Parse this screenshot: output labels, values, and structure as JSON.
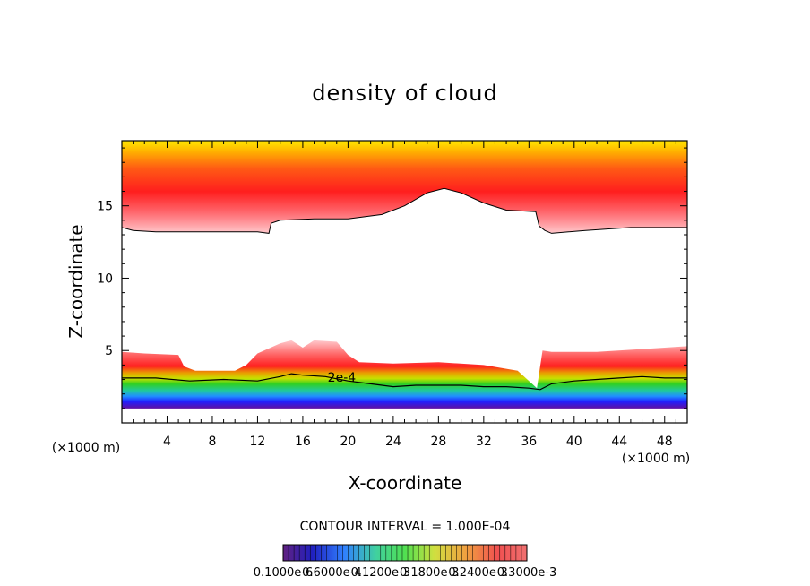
{
  "chart_data": {
    "type": "contour",
    "title": "density of cloud",
    "xlabel": "X-coordinate",
    "ylabel": "Z-coordinate",
    "x_unit": "(×1000 m)",
    "y_unit": "(×1000 m)",
    "xlim": [
      0,
      50
    ],
    "ylim": [
      0,
      19.5
    ],
    "x_ticks": [
      4,
      8,
      12,
      16,
      20,
      24,
      28,
      32,
      36,
      40,
      44,
      48
    ],
    "y_ticks": [
      5,
      10,
      15
    ],
    "contour_interval_text": "CONTOUR INTERVAL = 1.000E-04",
    "contour_label": "2e-4",
    "colorbar_labels": [
      "0.1000e-6",
      "0.6000e-4",
      "0.1200e-3",
      "0.1800e-3",
      "0.2400e-3",
      "0.3000e-3"
    ],
    "upper_cloud": {
      "top": 19.5,
      "base_x": [
        0,
        1,
        3,
        6,
        9,
        12,
        13,
        13.2,
        14,
        17,
        20,
        23,
        25,
        27,
        28.5,
        30,
        32,
        34,
        36.6,
        36.9,
        37.4,
        38,
        41,
        45,
        50
      ],
      "base_z": [
        13.5,
        13.3,
        13.2,
        13.2,
        13.2,
        13.2,
        13.1,
        13.8,
        14.0,
        14.1,
        14.1,
        14.4,
        15.0,
        15.9,
        16.2,
        15.9,
        15.2,
        14.7,
        14.6,
        13.6,
        13.3,
        13.1,
        13.3,
        13.5,
        13.5
      ],
      "contour_x": [
        0,
        1,
        3,
        6,
        9,
        12,
        13,
        13.2,
        14,
        17,
        20,
        23,
        25,
        27,
        28.5,
        30,
        32,
        34,
        36.6,
        36.9,
        37.4,
        38,
        41,
        45,
        50
      ],
      "contour_z": [
        13.5,
        13.3,
        13.2,
        13.2,
        13.2,
        13.2,
        13.1,
        13.8,
        14.0,
        14.1,
        14.1,
        14.4,
        15.0,
        15.9,
        16.2,
        15.9,
        15.2,
        14.7,
        14.6,
        13.6,
        13.3,
        13.1,
        13.3,
        13.5,
        13.5
      ]
    },
    "lower_cloud": {
      "bottom": 1.0,
      "top_x": [
        0,
        2,
        5,
        5.5,
        6.5,
        10,
        11,
        12,
        14,
        15,
        16,
        17,
        19,
        20,
        21,
        24,
        28,
        32,
        35,
        36.7,
        37.2,
        38,
        42,
        46,
        50
      ],
      "top_z": [
        4.9,
        4.8,
        4.7,
        3.9,
        3.6,
        3.6,
        4.0,
        4.8,
        5.5,
        5.7,
        5.2,
        5.7,
        5.6,
        4.7,
        4.2,
        4.1,
        4.2,
        4.0,
        3.6,
        2.4,
        5.0,
        4.9,
        4.9,
        5.1,
        5.3
      ],
      "contour_x": [
        0,
        3,
        6,
        9,
        12,
        14,
        15,
        16,
        18,
        20,
        22,
        24,
        26,
        28,
        30,
        32,
        34,
        36,
        37,
        38,
        40,
        42,
        44,
        46,
        48,
        50
      ],
      "contour_z": [
        3.1,
        3.1,
        2.9,
        3.0,
        2.9,
        3.2,
        3.4,
        3.3,
        3.2,
        2.9,
        2.7,
        2.5,
        2.6,
        2.6,
        2.6,
        2.5,
        2.5,
        2.4,
        2.3,
        2.7,
        2.9,
        3.0,
        3.1,
        3.2,
        3.1,
        3.1
      ]
    }
  }
}
